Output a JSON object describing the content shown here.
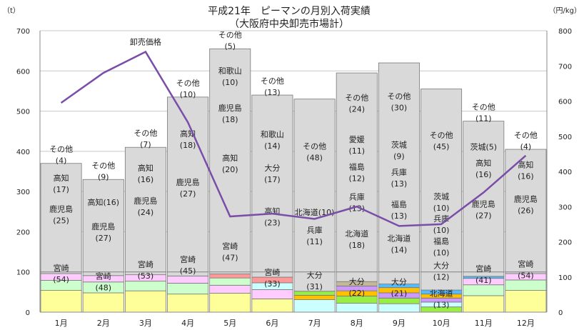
{
  "chart_data": {
    "type": "bar",
    "title": "平成21年　ピーマンの月別入荷実績",
    "subtitle": "（大阪府中央卸売市場計）",
    "ylabel_left": "（t）",
    "ylabel_right": "（円/kg）",
    "categories": [
      "1月",
      "2月",
      "3月",
      "4月",
      "5月",
      "6月",
      "7月",
      "8月",
      "9月",
      "10月",
      "11月",
      "12月"
    ],
    "ylim": [
      0,
      700
    ],
    "y2lim": [
      0,
      800
    ],
    "yticks": [
      "0",
      "100",
      "200",
      "300",
      "400",
      "500",
      "600",
      "700"
    ],
    "y2ticks": [
      "0",
      "100",
      "200",
      "300",
      "400",
      "500",
      "600",
      "700",
      "800"
    ],
    "colors": {
      "宮崎": "#ffff99",
      "大分": "#ccffff",
      "北海道": "#99ee44",
      "兵庫": "#ffc000",
      "福島": "#cc99ff",
      "愛媛": "#c4b996",
      "茨城": "#55bbff",
      "鹿児島": "#ccffcc",
      "高知": "#ffccff",
      "和歌山": "#ff9999",
      "その他": "#d9d9d9",
      "line": "#7a4ea8"
    },
    "stacks": [
      [
        {
          "name": "宮崎",
          "value": 54
        },
        {
          "name": "鹿児島",
          "value": 25
        },
        {
          "name": "高知",
          "value": 17
        },
        {
          "name": "その他",
          "value": 4
        }
      ],
      [
        {
          "name": "宮崎",
          "value": 48
        },
        {
          "name": "鹿児島",
          "value": 27
        },
        {
          "name": "高知",
          "value": 16
        },
        {
          "name": "その他",
          "value": 9
        }
      ],
      [
        {
          "name": "宮崎",
          "value": 53
        },
        {
          "name": "鹿児島",
          "value": 24
        },
        {
          "name": "高知",
          "value": 16
        },
        {
          "name": "その他",
          "value": 7
        }
      ],
      [
        {
          "name": "宮崎",
          "value": 45
        },
        {
          "name": "鹿児島",
          "value": 27
        },
        {
          "name": "高知",
          "value": 18
        },
        {
          "name": "その他",
          "value": 10
        }
      ],
      [
        {
          "name": "宮崎",
          "value": 47
        },
        {
          "name": "高知",
          "value": 20
        },
        {
          "name": "鹿児島",
          "value": 18
        },
        {
          "name": "和歌山",
          "value": 10
        },
        {
          "name": "その他",
          "value": 5
        }
      ],
      [
        {
          "name": "宮崎",
          "value": 33
        },
        {
          "name": "高知",
          "value": 23
        },
        {
          "name": "大分",
          "value": 17
        },
        {
          "name": "和歌山",
          "value": 14
        },
        {
          "name": "その他",
          "value": 13
        }
      ],
      [
        {
          "name": "大分",
          "value": 31
        },
        {
          "name": "兵庫",
          "value": 11
        },
        {
          "name": "北海道",
          "value": 10
        },
        {
          "name": "その他",
          "value": 48
        }
      ],
      [
        {
          "name": "大分",
          "value": 22
        },
        {
          "name": "北海道",
          "value": 18
        },
        {
          "name": "兵庫",
          "value": 13
        },
        {
          "name": "福島",
          "value": 12
        },
        {
          "name": "愛媛",
          "value": 11
        },
        {
          "name": "その他",
          "value": 24
        }
      ],
      [
        {
          "name": "大分",
          "value": 21
        },
        {
          "name": "北海道",
          "value": 14
        },
        {
          "name": "福島",
          "value": 13
        },
        {
          "name": "兵庫",
          "value": 13
        },
        {
          "name": "茨城",
          "value": 9
        },
        {
          "name": "その他",
          "value": 30
        }
      ],
      [
        {
          "name": "北海道",
          "value": 13
        },
        {
          "name": "大分",
          "value": 12
        },
        {
          "name": "福島",
          "value": 10
        },
        {
          "name": "兵庫",
          "value": 10
        },
        {
          "name": "茨城",
          "value": 10
        },
        {
          "name": "その他",
          "value": 45
        }
      ],
      [
        {
          "name": "宮崎",
          "value": 41
        },
        {
          "name": "鹿児島",
          "value": 27
        },
        {
          "name": "高知",
          "value": 16
        },
        {
          "name": "茨城",
          "value": 5
        },
        {
          "name": "その他",
          "value": 11
        }
      ],
      [
        {
          "name": "宮崎",
          "value": 54
        },
        {
          "name": "鹿児島",
          "value": 26
        },
        {
          "name": "高知",
          "value": 16
        },
        {
          "name": "その他",
          "value": 4
        }
      ]
    ],
    "totals": [
      370,
      330,
      410,
      535,
      655,
      540,
      530,
      595,
      620,
      555,
      475,
      405
    ],
    "line": {
      "name": "卸売価格",
      "values": [
        595,
        680,
        740,
        540,
        272,
        280,
        265,
        300,
        245,
        250,
        340,
        445
      ]
    },
    "grid": true
  }
}
